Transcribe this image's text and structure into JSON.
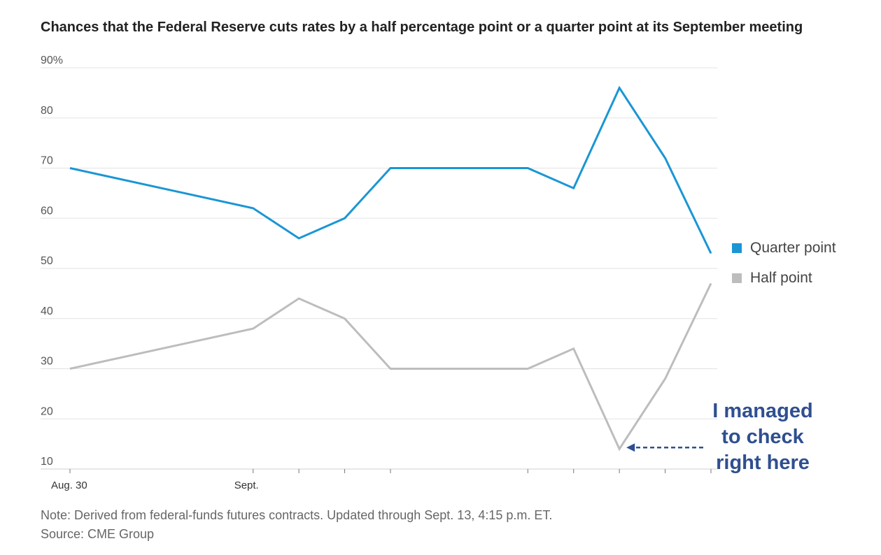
{
  "chart_data": {
    "type": "line",
    "title": "Chances that the Federal Reserve cuts rates by a half percentage point or a quarter point at its September meeting",
    "y_tick_labels": [
      "90%",
      "80",
      "70",
      "60",
      "50",
      "40",
      "30",
      "20",
      "10"
    ],
    "y_ticks": [
      90,
      80,
      70,
      60,
      50,
      40,
      30,
      20,
      10
    ],
    "ylim": [
      10,
      90
    ],
    "x": [
      0,
      4,
      5,
      6,
      7,
      10,
      11,
      12,
      13,
      14
    ],
    "x_tick_labels": [
      {
        "x": 0,
        "label": "Aug. 30"
      },
      {
        "x": 4,
        "label": "Sept."
      },
      {
        "x": 5,
        "label": ""
      },
      {
        "x": 6,
        "label": ""
      },
      {
        "x": 7,
        "label": ""
      },
      {
        "x": 10,
        "label": ""
      },
      {
        "x": 11,
        "label": ""
      },
      {
        "x": 12,
        "label": ""
      },
      {
        "x": 13,
        "label": ""
      },
      {
        "x": 14,
        "label": ""
      }
    ],
    "series": [
      {
        "name": "Quarter point",
        "color": "#1a96d4",
        "values": [
          70,
          62,
          56,
          60,
          70,
          70,
          66,
          86,
          72,
          53
        ]
      },
      {
        "name": "Half point",
        "color": "#bdbdbd",
        "values": [
          30,
          38,
          44,
          40,
          30,
          30,
          34,
          14,
          28,
          47
        ]
      }
    ],
    "grid": true,
    "legend_position": "right"
  },
  "annotation": {
    "text_lines": [
      "I managed",
      "to check",
      "right here"
    ],
    "color": "#2f4f8f"
  },
  "footer": {
    "note": "Note: Derived from federal-funds futures contracts. Updated through Sept. 13, 4:15 p.m. ET.",
    "source": "Source: CME Group"
  }
}
